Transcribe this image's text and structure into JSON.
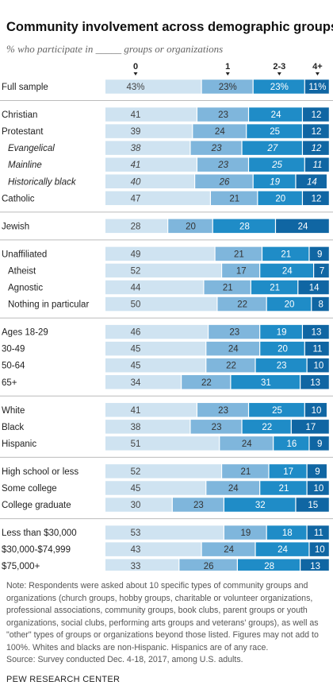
{
  "title": "Community involvement across demographic groups",
  "subtitle": "% who participate in _____ groups or organizations",
  "note": "Note: Respondents were asked about 10 specific types of community groups and organizations (church groups, hobby groups, charitable or volunteer organizations, professional associations, community groups, book clubs, parent groups or youth organizations, social clubs, performing arts groups and veterans' groups), as well as \"other\" types of groups or organizations beyond those listed. Figures may not add to 100%. Whites and blacks are non-Hispanic. Hispanics are of any race.",
  "source": "Source: Survey conducted Dec. 4-18, 2017, among U.S. adults.",
  "footer": "PEW RESEARCH CENTER",
  "colors": [
    "#cfe3f1",
    "#7fb6dc",
    "#1f8cc7",
    "#1066a3"
  ],
  "chart_data": {
    "type": "bar",
    "orientation": "horizontal",
    "stacked": true,
    "series_names": [
      "0",
      "1",
      "2-3",
      "4+"
    ],
    "rows": [
      {
        "label": "Full sample",
        "values": [
          43,
          23,
          23,
          11
        ],
        "labels": [
          "43%",
          "23%",
          "23%",
          "11%"
        ],
        "group": 0,
        "italic": false,
        "indent": 0
      },
      {
        "label": "Christian",
        "values": [
          41,
          23,
          24,
          12
        ],
        "labels": [
          "41",
          "23",
          "24",
          "12"
        ],
        "group": 1,
        "italic": false,
        "indent": 0
      },
      {
        "label": "Protestant",
        "values": [
          39,
          24,
          25,
          12
        ],
        "labels": [
          "39",
          "24",
          "25",
          "12"
        ],
        "group": 1,
        "italic": false,
        "indent": 0
      },
      {
        "label": "Evangelical",
        "values": [
          38,
          23,
          27,
          12
        ],
        "labels": [
          "38",
          "23",
          "27",
          "12"
        ],
        "group": 1,
        "italic": true,
        "indent": 1
      },
      {
        "label": "Mainline",
        "values": [
          41,
          23,
          25,
          11
        ],
        "labels": [
          "41",
          "23",
          "25",
          "11"
        ],
        "group": 1,
        "italic": true,
        "indent": 1
      },
      {
        "label": "Historically black",
        "values": [
          40,
          26,
          19,
          14
        ],
        "labels": [
          "40",
          "26",
          "19",
          "14"
        ],
        "group": 1,
        "italic": true,
        "indent": 1
      },
      {
        "label": "Catholic",
        "values": [
          47,
          21,
          20,
          12
        ],
        "labels": [
          "47",
          "21",
          "20",
          "12"
        ],
        "group": 1,
        "italic": false,
        "indent": 0
      },
      {
        "label": "Jewish",
        "values": [
          28,
          20,
          28,
          24
        ],
        "labels": [
          "28",
          "20",
          "28",
          "24"
        ],
        "group": 2,
        "italic": false,
        "indent": 0
      },
      {
        "label": "Unaffiliated",
        "values": [
          49,
          21,
          21,
          9
        ],
        "labels": [
          "49",
          "21",
          "21",
          "9"
        ],
        "group": 3,
        "italic": false,
        "indent": 0
      },
      {
        "label": "Atheist",
        "values": [
          52,
          17,
          24,
          7
        ],
        "labels": [
          "52",
          "17",
          "24",
          "7"
        ],
        "group": 3,
        "italic": false,
        "indent": 1
      },
      {
        "label": "Agnostic",
        "values": [
          44,
          21,
          21,
          14
        ],
        "labels": [
          "44",
          "21",
          "21",
          "14"
        ],
        "group": 3,
        "italic": false,
        "indent": 1
      },
      {
        "label": "Nothing in particular",
        "values": [
          50,
          22,
          20,
          8
        ],
        "labels": [
          "50",
          "22",
          "20",
          "8"
        ],
        "group": 3,
        "italic": false,
        "indent": 1
      },
      {
        "label": "Ages 18-29",
        "values": [
          46,
          23,
          19,
          13
        ],
        "labels": [
          "46",
          "23",
          "19",
          "13"
        ],
        "group": 4,
        "italic": false,
        "indent": 0
      },
      {
        "label": "30-49",
        "values": [
          45,
          24,
          20,
          11
        ],
        "labels": [
          "45",
          "24",
          "20",
          "11"
        ],
        "group": 4,
        "italic": false,
        "indent": 0
      },
      {
        "label": "50-64",
        "values": [
          45,
          22,
          23,
          10
        ],
        "labels": [
          "45",
          "22",
          "23",
          "10"
        ],
        "group": 4,
        "italic": false,
        "indent": 0
      },
      {
        "label": "65+",
        "values": [
          34,
          22,
          31,
          13
        ],
        "labels": [
          "34",
          "22",
          "31",
          "13"
        ],
        "group": 4,
        "italic": false,
        "indent": 0
      },
      {
        "label": "White",
        "values": [
          41,
          23,
          25,
          10
        ],
        "labels": [
          "41",
          "23",
          "25",
          "10"
        ],
        "group": 5,
        "italic": false,
        "indent": 0
      },
      {
        "label": "Black",
        "values": [
          38,
          23,
          22,
          17
        ],
        "labels": [
          "38",
          "23",
          "22",
          "17"
        ],
        "group": 5,
        "italic": false,
        "indent": 0
      },
      {
        "label": "Hispanic",
        "values": [
          51,
          24,
          16,
          9
        ],
        "labels": [
          "51",
          "24",
          "16",
          "9"
        ],
        "group": 5,
        "italic": false,
        "indent": 0
      },
      {
        "label": "High school or less",
        "values": [
          52,
          21,
          17,
          9
        ],
        "labels": [
          "52",
          "21",
          "17",
          "9"
        ],
        "group": 6,
        "italic": false,
        "indent": 0
      },
      {
        "label": "Some college",
        "values": [
          45,
          24,
          21,
          10
        ],
        "labels": [
          "45",
          "24",
          "21",
          "10"
        ],
        "group": 6,
        "italic": false,
        "indent": 0
      },
      {
        "label": "College graduate",
        "values": [
          30,
          23,
          32,
          15
        ],
        "labels": [
          "30",
          "23",
          "32",
          "15"
        ],
        "group": 6,
        "italic": false,
        "indent": 0
      },
      {
        "label": "Less than $30,000",
        "values": [
          53,
          19,
          18,
          11
        ],
        "labels": [
          "53",
          "19",
          "18",
          "11"
        ],
        "group": 7,
        "italic": false,
        "indent": 0
      },
      {
        "label": "$30,000-$74,999",
        "values": [
          43,
          24,
          24,
          10
        ],
        "labels": [
          "43",
          "24",
          "24",
          "10"
        ],
        "group": 7,
        "italic": false,
        "indent": 0
      },
      {
        "label": "$75,000+",
        "values": [
          33,
          26,
          28,
          13
        ],
        "labels": [
          "33",
          "26",
          "28",
          "13"
        ],
        "group": 7,
        "italic": false,
        "indent": 0
      }
    ]
  }
}
